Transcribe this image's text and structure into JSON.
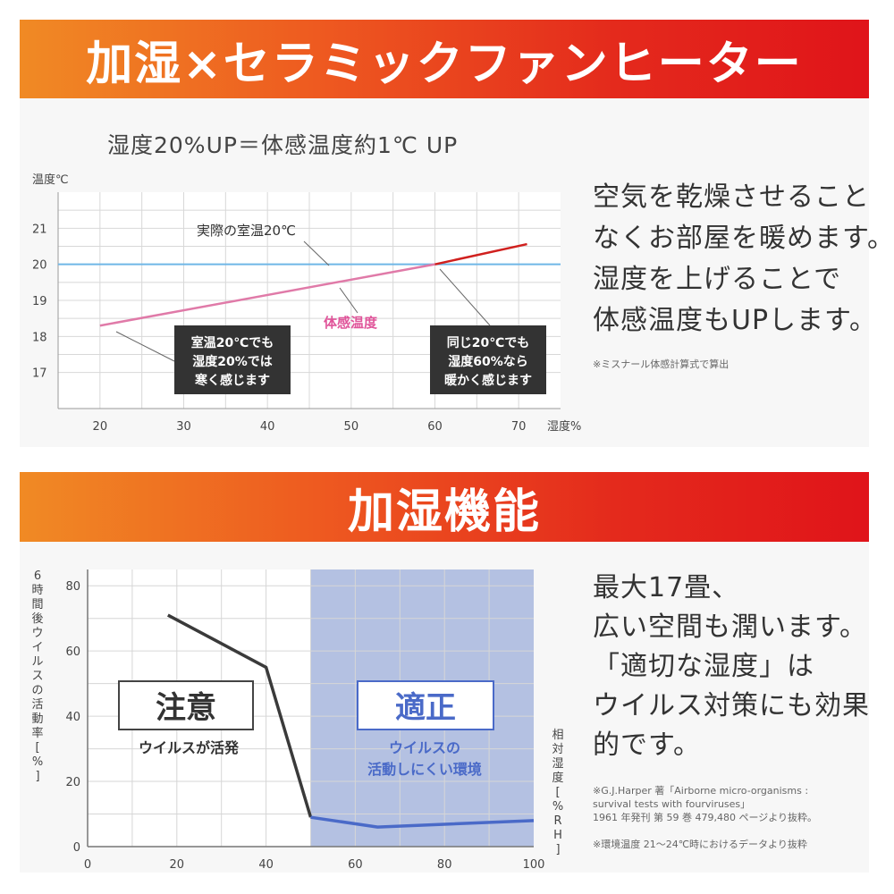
{
  "banners": {
    "top_title": "加湿×セラミックファンヒーター",
    "bottom_title": "加湿機能"
  },
  "section1": {
    "subtitle": "湿度20%UP＝体感温度約1℃ UP",
    "description_lines": [
      "空気を乾燥させること",
      "なくお部屋を暖めます。",
      "湿度を上げることで",
      "体感温度もUPします。"
    ],
    "footnote": "※ミスナール体感計算式で算出"
  },
  "section2": {
    "description_lines": [
      "最大17畳、",
      "広い空間も潤います。",
      "「適切な湿度」は",
      "ウイルス対策にも効果",
      "的です。"
    ],
    "footnote1_lines": [
      "※G.J.Harper 著「Airborne micro-organisms :",
      "survival tests with fourviruses」",
      "1961 年発刊 第 59 巻 479,480 ページより抜粋。"
    ],
    "footnote2": "※環境温度 21～24℃時におけるデータより抜粋"
  },
  "chart_data": [
    {
      "type": "line",
      "title": "湿度20%UP＝体感温度約1℃ UP",
      "xlabel": "湿度%",
      "ylabel": "温度℃",
      "xlim": [
        15,
        75
      ],
      "ylim": [
        16,
        22
      ],
      "x_ticks": [
        20,
        30,
        40,
        50,
        60,
        70
      ],
      "y_ticks": [
        17,
        18,
        19,
        20,
        21
      ],
      "grid": true,
      "series": [
        {
          "name": "実際の室温20℃",
          "color": "#6fb6e6",
          "x": [
            15,
            75
          ],
          "y": [
            20,
            20
          ]
        },
        {
          "name": "体感温度",
          "color": "#e07aa8",
          "accent_color": "#d0201e",
          "x": [
            20,
            60,
            71
          ],
          "y": [
            18.3,
            20.0,
            20.56
          ]
        }
      ],
      "annotations": [
        {
          "text": "実際の室温20℃"
        },
        {
          "text": "体感温度",
          "color": "#e0559a"
        },
        {
          "lines": [
            "室温20℃でも",
            "湿度20%では",
            "寒く感じます"
          ]
        },
        {
          "lines": [
            "同じ20℃でも",
            "湿度60%なら",
            "暖かく感じます"
          ]
        }
      ]
    },
    {
      "type": "line",
      "xlabel": "相対湿度[%RH]",
      "ylabel": "6時間後ウイルスの活動率[%]",
      "xlim": [
        0,
        100
      ],
      "ylim": [
        0,
        85
      ],
      "x_ticks": [
        0,
        20,
        40,
        60,
        80,
        100
      ],
      "y_ticks": [
        0,
        20,
        40,
        60,
        80
      ],
      "grid": true,
      "series": [
        {
          "name": "ウイルス活動率",
          "color": "#3a3a3a",
          "accent_color": "#4a6ac8",
          "x": [
            18,
            40,
            50,
            65,
            100
          ],
          "y": [
            71,
            55,
            9,
            6,
            8
          ]
        }
      ],
      "shaded_range": {
        "x": [
          50,
          100
        ],
        "color": "#b4c1e2"
      },
      "annotations": [
        {
          "label": "注意",
          "text": "ウイルスが活発"
        },
        {
          "label": "適正",
          "lines": [
            "ウイルスの",
            "活動しにくい環境"
          ]
        }
      ]
    }
  ]
}
